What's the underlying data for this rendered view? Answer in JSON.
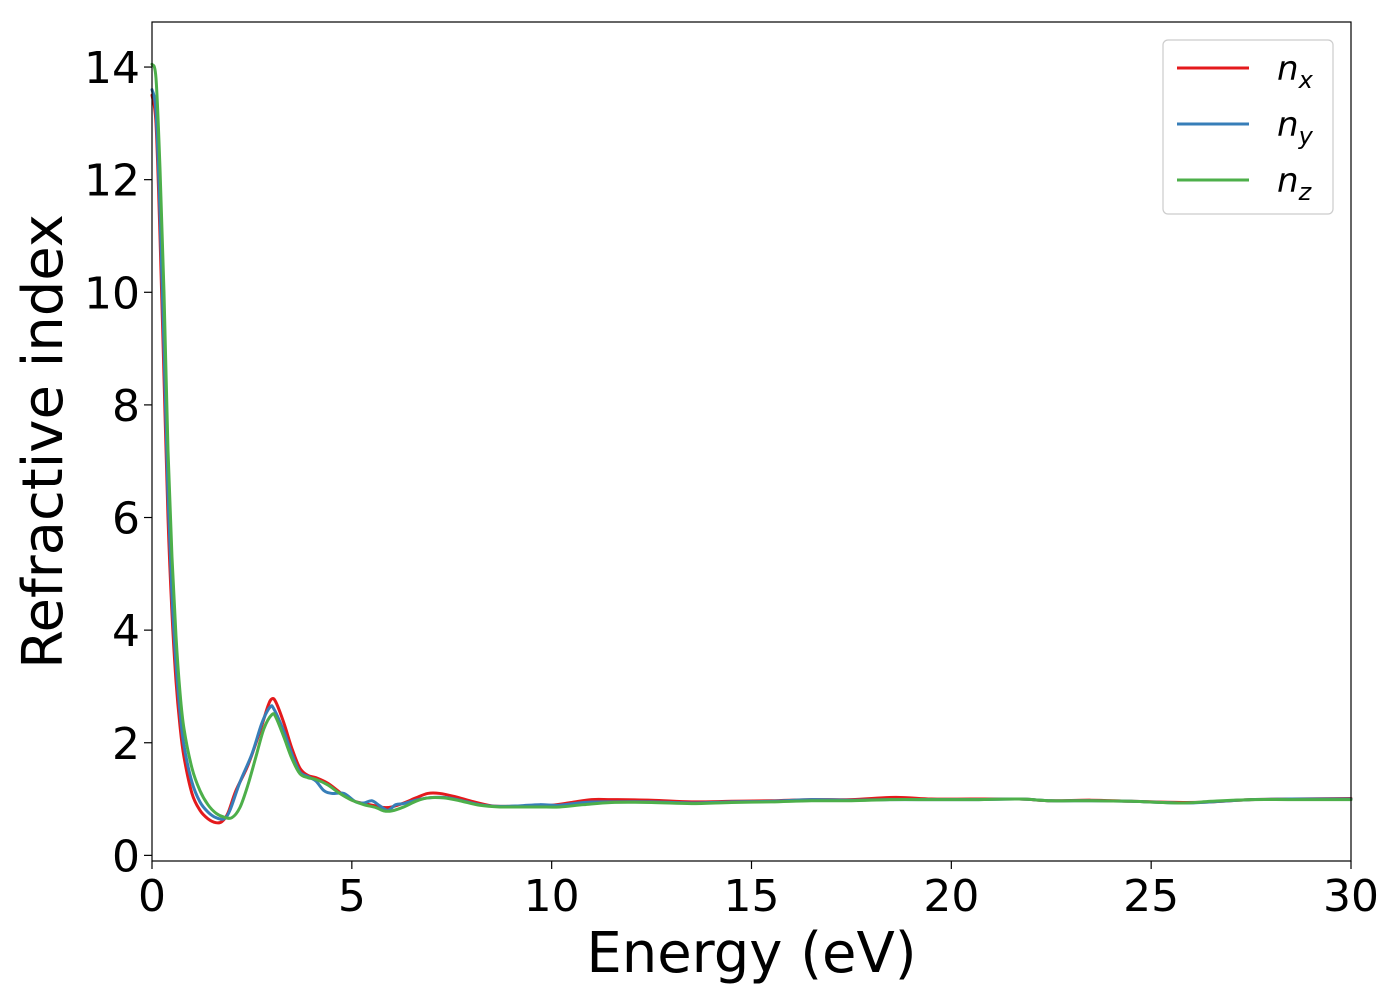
{
  "chart_data": {
    "type": "line",
    "title": "",
    "xlabel": "Energy (eV)",
    "ylabel": "Refractive index",
    "xlim": [
      0,
      30
    ],
    "ylim": [
      -0.1,
      14.8
    ],
    "x_ticks": [
      "0",
      "5",
      "10",
      "15",
      "20",
      "25",
      "30"
    ],
    "y_ticks": [
      "0",
      "2",
      "4",
      "6",
      "8",
      "10",
      "12",
      "14"
    ],
    "legend_position": "top-right",
    "grid": false,
    "series": [
      {
        "base": "n",
        "sub": "x",
        "color": "#e41a1c",
        "points": [
          [
            0,
            13.5
          ],
          [
            0.1,
            13.0
          ],
          [
            0.2,
            11.0
          ],
          [
            0.3,
            8.5
          ],
          [
            0.4,
            6.0
          ],
          [
            0.5,
            4.3
          ],
          [
            0.6,
            3.1
          ],
          [
            0.7,
            2.3
          ],
          [
            0.8,
            1.75
          ],
          [
            1.0,
            1.1
          ],
          [
            1.2,
            0.8
          ],
          [
            1.4,
            0.65
          ],
          [
            1.6,
            0.58
          ],
          [
            1.75,
            0.6
          ],
          [
            1.9,
            0.75
          ],
          [
            2.1,
            1.15
          ],
          [
            2.4,
            1.6
          ],
          [
            2.7,
            2.2
          ],
          [
            2.9,
            2.65
          ],
          [
            3.0,
            2.78
          ],
          [
            3.1,
            2.72
          ],
          [
            3.3,
            2.35
          ],
          [
            3.5,
            1.9
          ],
          [
            3.7,
            1.55
          ],
          [
            3.9,
            1.42
          ],
          [
            4.1,
            1.38
          ],
          [
            4.4,
            1.28
          ],
          [
            4.7,
            1.12
          ],
          [
            5.0,
            0.98
          ],
          [
            5.3,
            0.92
          ],
          [
            5.6,
            0.88
          ],
          [
            5.8,
            0.85
          ],
          [
            6.0,
            0.86
          ],
          [
            6.3,
            0.93
          ],
          [
            6.6,
            1.02
          ],
          [
            6.9,
            1.1
          ],
          [
            7.2,
            1.1
          ],
          [
            7.6,
            1.04
          ],
          [
            8.0,
            0.96
          ],
          [
            8.5,
            0.88
          ],
          [
            9.0,
            0.87
          ],
          [
            9.5,
            0.87
          ],
          [
            10.0,
            0.89
          ],
          [
            10.5,
            0.94
          ],
          [
            11.0,
            0.99
          ],
          [
            11.5,
            0.99
          ],
          [
            12.5,
            0.98
          ],
          [
            13.5,
            0.95
          ],
          [
            14.5,
            0.96
          ],
          [
            15.5,
            0.97
          ],
          [
            16.5,
            0.99
          ],
          [
            17.5,
            0.99
          ],
          [
            18.6,
            1.03
          ],
          [
            19.5,
            1.0
          ],
          [
            20.5,
            1.0
          ],
          [
            21.7,
            1.0
          ],
          [
            22.5,
            0.97
          ],
          [
            23.5,
            0.98
          ],
          [
            24.5,
            0.96
          ],
          [
            25.8,
            0.94
          ],
          [
            26.5,
            0.95
          ],
          [
            27.5,
            0.99
          ],
          [
            28.5,
            1.0
          ],
          [
            30.0,
            1.01
          ]
        ]
      },
      {
        "base": "n",
        "sub": "y",
        "color": "#377eb8",
        "points": [
          [
            0,
            13.6
          ],
          [
            0.1,
            13.2
          ],
          [
            0.2,
            11.4
          ],
          [
            0.3,
            9.0
          ],
          [
            0.4,
            6.4
          ],
          [
            0.5,
            4.6
          ],
          [
            0.6,
            3.4
          ],
          [
            0.7,
            2.55
          ],
          [
            0.8,
            1.95
          ],
          [
            1.0,
            1.3
          ],
          [
            1.2,
            0.95
          ],
          [
            1.4,
            0.77
          ],
          [
            1.6,
            0.67
          ],
          [
            1.8,
            0.65
          ],
          [
            1.95,
            0.8
          ],
          [
            2.2,
            1.3
          ],
          [
            2.5,
            1.8
          ],
          [
            2.75,
            2.35
          ],
          [
            2.95,
            2.63
          ],
          [
            3.05,
            2.6
          ],
          [
            3.3,
            2.2
          ],
          [
            3.5,
            1.8
          ],
          [
            3.7,
            1.48
          ],
          [
            3.9,
            1.4
          ],
          [
            4.1,
            1.32
          ],
          [
            4.3,
            1.15
          ],
          [
            4.5,
            1.1
          ],
          [
            4.8,
            1.1
          ],
          [
            5.1,
            0.95
          ],
          [
            5.3,
            0.93
          ],
          [
            5.5,
            0.97
          ],
          [
            5.7,
            0.88
          ],
          [
            5.9,
            0.8
          ],
          [
            6.1,
            0.9
          ],
          [
            6.3,
            0.92
          ],
          [
            6.6,
            0.98
          ],
          [
            6.9,
            1.02
          ],
          [
            7.3,
            1.03
          ],
          [
            7.7,
            0.98
          ],
          [
            8.2,
            0.9
          ],
          [
            8.7,
            0.87
          ],
          [
            9.2,
            0.88
          ],
          [
            9.7,
            0.9
          ],
          [
            10.2,
            0.89
          ],
          [
            10.8,
            0.94
          ],
          [
            11.5,
            0.95
          ],
          [
            12.5,
            0.95
          ],
          [
            13.5,
            0.93
          ],
          [
            14.5,
            0.95
          ],
          [
            15.5,
            0.96
          ],
          [
            16.5,
            0.99
          ],
          [
            17.5,
            0.98
          ],
          [
            18.5,
            0.99
          ],
          [
            19.5,
            0.99
          ],
          [
            20.5,
            0.99
          ],
          [
            21.7,
            1.0
          ],
          [
            22.5,
            0.97
          ],
          [
            23.5,
            0.97
          ],
          [
            24.5,
            0.96
          ],
          [
            25.8,
            0.93
          ],
          [
            26.5,
            0.95
          ],
          [
            27.5,
            0.99
          ],
          [
            28.5,
            1.0
          ],
          [
            30.0,
            1.0
          ]
        ]
      },
      {
        "base": "n",
        "sub": "z",
        "color": "#4daf4a",
        "points": [
          [
            0,
            14.05
          ],
          [
            0.1,
            13.8
          ],
          [
            0.2,
            12.2
          ],
          [
            0.3,
            10.0
          ],
          [
            0.4,
            7.2
          ],
          [
            0.5,
            5.3
          ],
          [
            0.6,
            3.9
          ],
          [
            0.7,
            2.9
          ],
          [
            0.8,
            2.25
          ],
          [
            1.0,
            1.55
          ],
          [
            1.2,
            1.15
          ],
          [
            1.4,
            0.9
          ],
          [
            1.6,
            0.75
          ],
          [
            1.8,
            0.68
          ],
          [
            2.0,
            0.67
          ],
          [
            2.2,
            0.85
          ],
          [
            2.4,
            1.25
          ],
          [
            2.6,
            1.75
          ],
          [
            2.8,
            2.25
          ],
          [
            3.0,
            2.5
          ],
          [
            3.1,
            2.45
          ],
          [
            3.3,
            2.1
          ],
          [
            3.5,
            1.72
          ],
          [
            3.7,
            1.45
          ],
          [
            3.9,
            1.38
          ],
          [
            4.1,
            1.35
          ],
          [
            4.4,
            1.25
          ],
          [
            4.7,
            1.1
          ],
          [
            5.0,
            0.98
          ],
          [
            5.3,
            0.9
          ],
          [
            5.6,
            0.85
          ],
          [
            5.8,
            0.79
          ],
          [
            6.0,
            0.79
          ],
          [
            6.3,
            0.86
          ],
          [
            6.6,
            0.96
          ],
          [
            6.9,
            1.02
          ],
          [
            7.3,
            1.02
          ],
          [
            7.7,
            0.97
          ],
          [
            8.2,
            0.89
          ],
          [
            8.7,
            0.86
          ],
          [
            9.2,
            0.86
          ],
          [
            9.7,
            0.86
          ],
          [
            10.2,
            0.86
          ],
          [
            10.8,
            0.9
          ],
          [
            11.5,
            0.94
          ],
          [
            12.5,
            0.94
          ],
          [
            13.5,
            0.92
          ],
          [
            14.5,
            0.94
          ],
          [
            15.5,
            0.95
          ],
          [
            16.5,
            0.97
          ],
          [
            17.5,
            0.97
          ],
          [
            18.5,
            0.99
          ],
          [
            19.5,
            0.99
          ],
          [
            20.5,
            0.99
          ],
          [
            21.7,
            1.0
          ],
          [
            22.5,
            0.97
          ],
          [
            23.5,
            0.97
          ],
          [
            24.5,
            0.96
          ],
          [
            25.8,
            0.93
          ],
          [
            26.5,
            0.96
          ],
          [
            27.5,
            0.99
          ],
          [
            28.5,
            0.99
          ],
          [
            30.0,
            0.99
          ]
        ]
      }
    ]
  }
}
